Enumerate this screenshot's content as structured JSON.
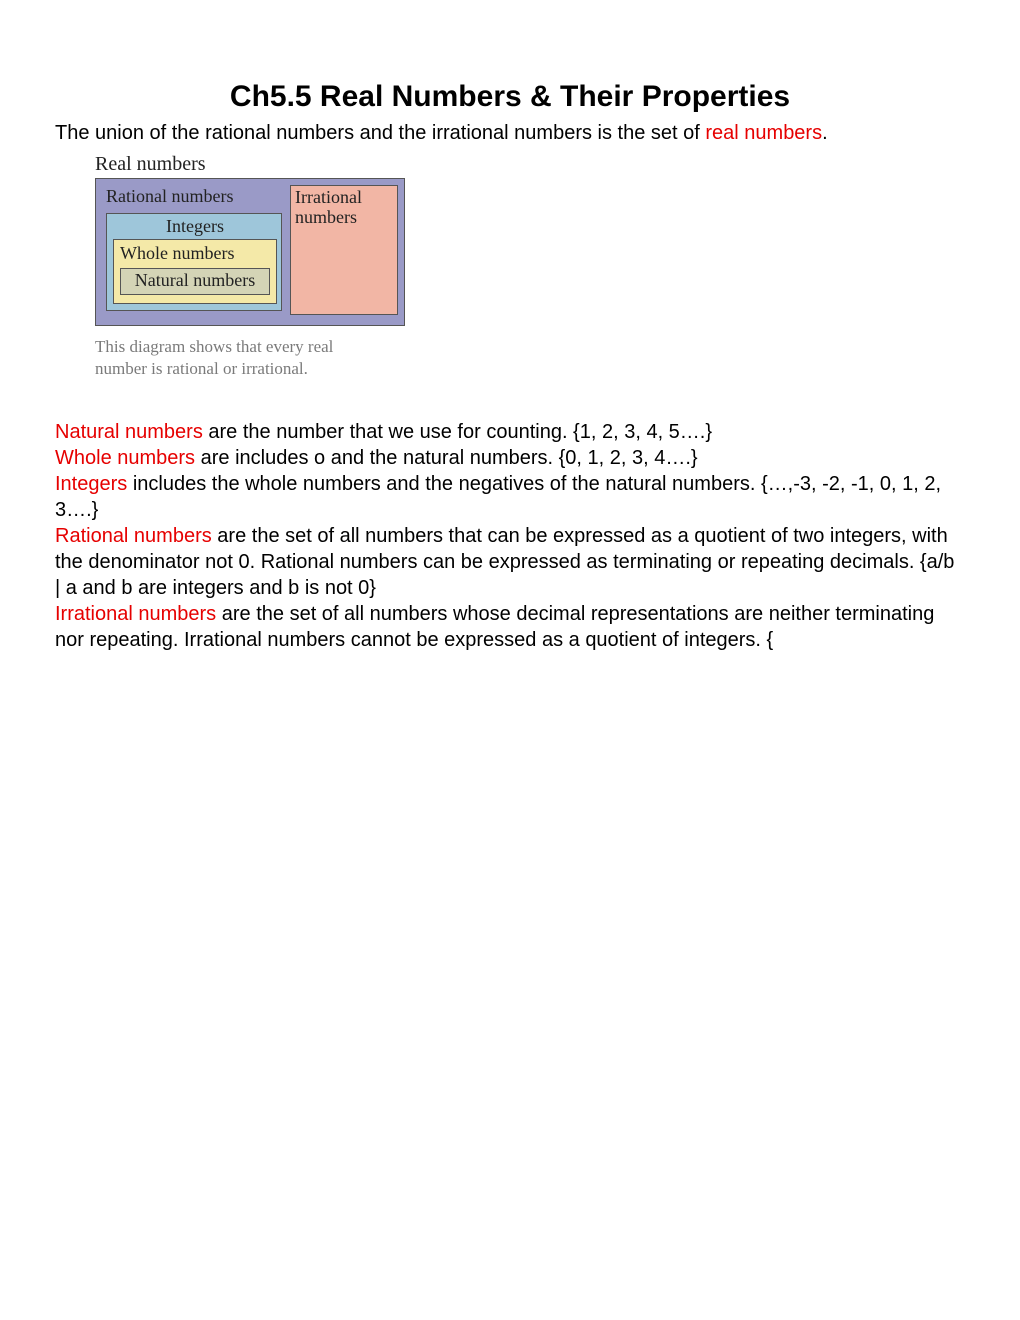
{
  "title": "Ch5.5 Real Numbers & Their Properties",
  "intro_prefix": "The union of the rational numbers and the irrational numbers is the set of ",
  "intro_highlight": "real numbers",
  "intro_suffix": ".",
  "diagram": {
    "outer_label": "Real numbers",
    "rational_label": "Rational numbers",
    "integers_label": "Integers",
    "whole_label": "Whole numbers",
    "natural_label": "Natural numbers",
    "irrational_label": "Irrational numbers",
    "caption": "This diagram shows that every real number is rational or irrational.",
    "colors": {
      "real_bg": "#9a9ac7",
      "integers_bg": "#9ec6da",
      "whole_bg": "#f4e9a8",
      "natural_bg": "#d4d4b6",
      "irrational_bg": "#f2b6a5",
      "border": "#555555",
      "caption_color": "#7a7a7a"
    }
  },
  "definitions": {
    "natural_term": "Natural numbers",
    "natural_text": " are the number that we use for counting. {1, 2, 3, 4, 5….}",
    "whole_term": "Whole numbers",
    "whole_text": " are includes o and the natural numbers. {0, 1, 2, 3, 4….}",
    "integers_term": "Integers",
    "integers_text": " includes the whole numbers and the negatives of the natural numbers. {…,-3, -2, -1, 0, 1, 2, 3….}",
    "rational_term": "Rational numbers",
    "rational_text": " are the set of all numbers that can be expressed as a quotient of two integers, with the denominator not 0. Rational numbers can be expressed as terminating or repeating decimals. {a/b | a and b are integers and b is not 0}",
    "irrational_term": "Irrational numbers",
    "irrational_text": " are the set of all numbers whose decimal representations are neither terminating nor repeating. Irrational numbers cannot be expressed as a quotient of integers. {"
  },
  "highlight_color": "#e60000"
}
